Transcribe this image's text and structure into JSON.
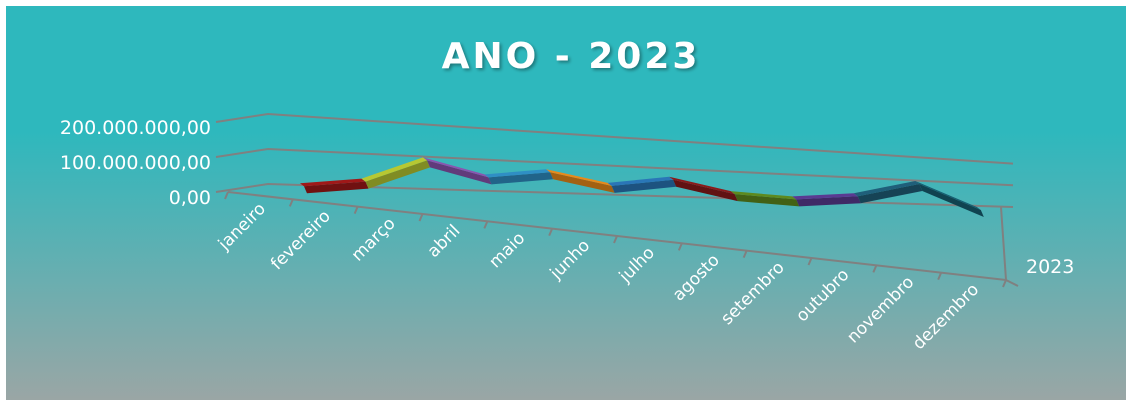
{
  "chart_data": {
    "type": "line",
    "title": "ANO - 2023",
    "categories": [
      "janeiro",
      "fevereiro",
      "março",
      "abril",
      "maio",
      "junho",
      "julho",
      "agosto",
      "setembro",
      "outubro",
      "novembro",
      "dezembro"
    ],
    "series": [
      {
        "name": "2023",
        "values": [
          0,
          25000000,
          110000000,
          60000000,
          90000000,
          50000000,
          85000000,
          40000000,
          30000000,
          55000000,
          120000000,
          20000000
        ]
      }
    ],
    "yticks": [
      "200.000.000,00",
      "100.000.000,00",
      "0,00"
    ],
    "ylim": [
      0,
      200000000
    ],
    "grid": true,
    "legend": "none",
    "colors": {
      "background_top": "#2eb8bd",
      "background_bottom": "#9aa6a5",
      "ribbons": [
        "#a01818",
        "#b7c832",
        "#8a55b0",
        "#2f8fc4",
        "#e98a1a",
        "#2a76b7",
        "#8b1a1a",
        "#5e8a1e",
        "#5a3a92",
        "#1f5f7a",
        "#175f72",
        "#e8650e"
      ]
    }
  }
}
